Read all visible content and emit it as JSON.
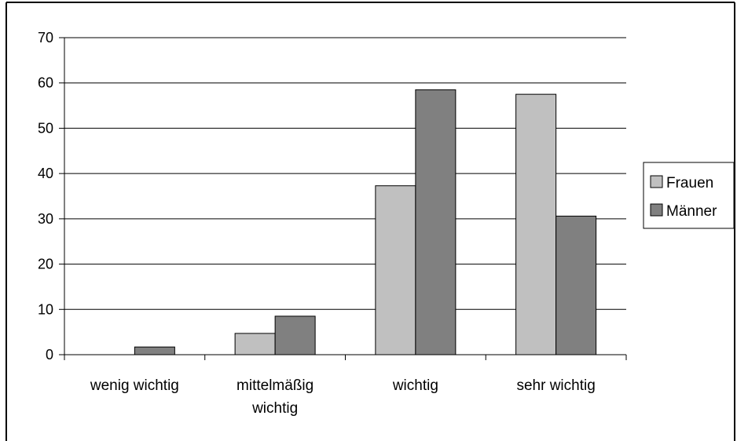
{
  "chart_data": {
    "type": "bar",
    "categories": [
      [
        "wenig wichtig"
      ],
      [
        "mittelmäßig",
        "wichtig"
      ],
      [
        "wichtig"
      ],
      [
        "sehr wichtig"
      ]
    ],
    "series": [
      {
        "name": "Frauen",
        "values": [
          0,
          4.7,
          37.3,
          57.5
        ],
        "color": "#c0c0c0"
      },
      {
        "name": "Männer",
        "values": [
          1.7,
          8.5,
          58.5,
          30.6
        ],
        "color": "#808080"
      }
    ],
    "ylim": [
      0,
      70
    ],
    "yticks": [
      0,
      10,
      20,
      30,
      40,
      50,
      60,
      70
    ],
    "grid": true,
    "legend_position": "right"
  }
}
